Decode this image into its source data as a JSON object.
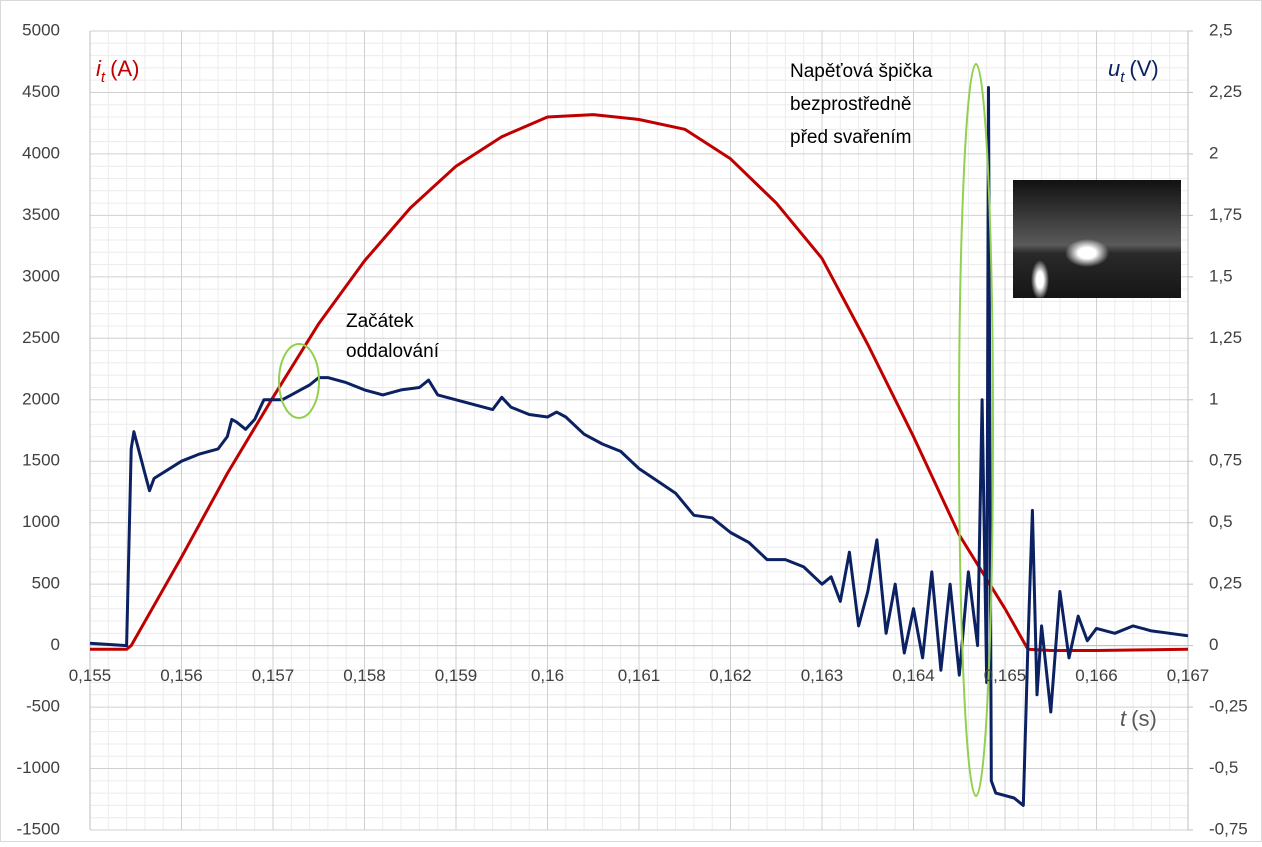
{
  "chart_data": {
    "type": "line",
    "x_label": {
      "main": "t",
      "unit": "(s)"
    },
    "y_label": {
      "main": "i",
      "sub": "t",
      "unit": "(A)"
    },
    "y2_label": {
      "main": "u",
      "sub": "t",
      "unit": "(V)"
    },
    "annotations": [
      {
        "lines": [
          "Začátek",
          "oddalování"
        ]
      },
      {
        "lines": [
          "Napěťová špička",
          "bezprostředně",
          "před svařením"
        ]
      }
    ],
    "xlim": [
      0.155,
      0.167
    ],
    "xticks": [
      {
        "value": 0.155,
        "label": "0,155"
      },
      {
        "value": 0.156,
        "label": "0,156"
      },
      {
        "value": 0.157,
        "label": "0,157"
      },
      {
        "value": 0.158,
        "label": "0,158"
      },
      {
        "value": 0.159,
        "label": "0,159"
      },
      {
        "value": 0.16,
        "label": "0,16"
      },
      {
        "value": 0.161,
        "label": "0,161"
      },
      {
        "value": 0.162,
        "label": "0,162"
      },
      {
        "value": 0.163,
        "label": "0,163"
      },
      {
        "value": 0.164,
        "label": "0,164"
      },
      {
        "value": 0.165,
        "label": "0,165"
      },
      {
        "value": 0.166,
        "label": "0,166"
      },
      {
        "value": 0.167,
        "label": "0,167"
      }
    ],
    "ylim": [
      -1500,
      5000
    ],
    "yticks": [
      -1500,
      -1000,
      -500,
      0,
      500,
      1000,
      1500,
      2000,
      2500,
      3000,
      3500,
      4000,
      4500,
      5000
    ],
    "y2lim": [
      -0.75,
      2.5
    ],
    "y2ticks": [
      {
        "value": -0.75,
        "label": "-0,75"
      },
      {
        "value": -0.5,
        "label": "-0,5"
      },
      {
        "value": -0.25,
        "label": "-0,25"
      },
      0,
      {
        "value": 0.25,
        "label": "0,25"
      },
      {
        "value": 0.5,
        "label": "0,5"
      },
      {
        "value": 0.75,
        "label": "0,75"
      },
      1,
      {
        "value": 1.25,
        "label": "1,25"
      },
      {
        "value": 1.5,
        "label": "1,5"
      },
      {
        "value": 1.75,
        "label": "1,75"
      },
      2,
      {
        "value": 2.25,
        "label": "2,25"
      },
      {
        "value": 2.5,
        "label": "2,5"
      }
    ],
    "grid": true,
    "minor_grid_divisions": 5,
    "series": [
      {
        "name": "i_t",
        "color": "#c00000",
        "axis": "y",
        "x": [
          0.155,
          0.1554,
          0.15545,
          0.156,
          0.1565,
          0.157,
          0.1575,
          0.158,
          0.1585,
          0.159,
          0.1595,
          0.16,
          0.1605,
          0.161,
          0.1615,
          0.162,
          0.1625,
          0.163,
          0.1635,
          0.164,
          0.1645,
          0.165,
          0.16525,
          0.1655,
          0.166,
          0.1665,
          0.167
        ],
        "values": [
          -30,
          -30,
          0,
          720,
          1400,
          2020,
          2620,
          3130,
          3560,
          3900,
          4140,
          4300,
          4320,
          4280,
          4200,
          3960,
          3600,
          3150,
          2450,
          1700,
          900,
          300,
          -30,
          -40,
          -40,
          -35,
          -30
        ]
      },
      {
        "name": "u_t",
        "color": "#0b2161",
        "axis": "y2",
        "x": [
          0.155,
          0.1554,
          0.15545,
          0.15548,
          0.1556,
          0.15565,
          0.1557,
          0.156,
          0.1562,
          0.1564,
          0.1565,
          0.15655,
          0.1566,
          0.1567,
          0.1568,
          0.1569,
          0.157,
          0.1571,
          0.1572,
          0.1573,
          0.1574,
          0.1575,
          0.1576,
          0.1578,
          0.158,
          0.1582,
          0.1584,
          0.1586,
          0.1587,
          0.1588,
          0.159,
          0.1592,
          0.1594,
          0.1595,
          0.1596,
          0.1598,
          0.16,
          0.1601,
          0.1602,
          0.1604,
          0.1606,
          0.1608,
          0.161,
          0.1612,
          0.1614,
          0.1616,
          0.1618,
          0.162,
          0.1622,
          0.1624,
          0.1626,
          0.1628,
          0.163,
          0.1631,
          0.1632,
          0.1633,
          0.1634,
          0.1635,
          0.1636,
          0.1637,
          0.1638,
          0.1639,
          0.164,
          0.1641,
          0.1642,
          0.1643,
          0.1644,
          0.1645,
          0.1646,
          0.1647,
          0.16475,
          0.1648,
          0.16482,
          0.16485,
          0.1649,
          0.1651,
          0.1652,
          0.16525,
          0.1653,
          0.16535,
          0.1654,
          0.1655,
          0.1656,
          0.1657,
          0.1658,
          0.1659,
          0.166,
          0.1662,
          0.1664,
          0.1666,
          0.1668,
          0.167
        ],
        "values": [
          0.01,
          0.0,
          0.8,
          0.87,
          0.7,
          0.63,
          0.68,
          0.75,
          0.78,
          0.8,
          0.85,
          0.92,
          0.91,
          0.88,
          0.92,
          1.0,
          1.0,
          1.0,
          1.02,
          1.04,
          1.06,
          1.09,
          1.09,
          1.07,
          1.04,
          1.02,
          1.04,
          1.05,
          1.08,
          1.02,
          1.0,
          0.98,
          0.96,
          1.01,
          0.97,
          0.94,
          0.93,
          0.95,
          0.93,
          0.86,
          0.82,
          0.79,
          0.72,
          0.67,
          0.62,
          0.53,
          0.52,
          0.46,
          0.42,
          0.35,
          0.35,
          0.32,
          0.25,
          0.28,
          0.18,
          0.38,
          0.08,
          0.22,
          0.43,
          0.05,
          0.25,
          -0.03,
          0.15,
          -0.05,
          0.3,
          -0.1,
          0.25,
          -0.12,
          0.3,
          0.0,
          1.0,
          -0.15,
          2.27,
          -0.55,
          -0.6,
          -0.62,
          -0.65,
          0.0,
          0.55,
          -0.2,
          0.08,
          -0.27,
          0.22,
          -0.05,
          0.12,
          0.02,
          0.07,
          0.05,
          0.08,
          0.06,
          0.05,
          0.04
        ]
      }
    ]
  }
}
